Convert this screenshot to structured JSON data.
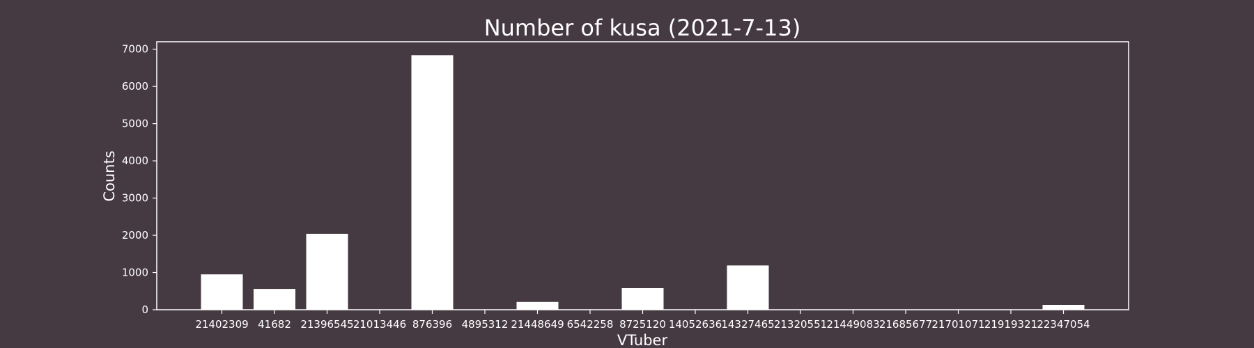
{
  "chart_data": {
    "type": "bar",
    "title": "Number of kusa (2021-7-13)",
    "xlabel": "VTuber",
    "ylabel": "Counts",
    "categories": [
      "21402309",
      "41682",
      "21396545",
      "21013446",
      "876396",
      "4895312",
      "21448649",
      "6542258",
      "8725120",
      "14052636",
      "14327465",
      "21320551",
      "21449083",
      "21685677",
      "21701071",
      "21919321",
      "22347054"
    ],
    "values": [
      950,
      560,
      2040,
      0,
      6840,
      0,
      210,
      0,
      580,
      0,
      1190,
      0,
      0,
      0,
      0,
      0,
      130
    ],
    "ylim": [
      0,
      7200
    ],
    "yticks": [
      0,
      1000,
      2000,
      3000,
      4000,
      5000,
      6000,
      7000
    ],
    "grid": false,
    "colors": {
      "background": "#463a42",
      "bar": "#ffffff",
      "text": "#ffffff"
    }
  }
}
